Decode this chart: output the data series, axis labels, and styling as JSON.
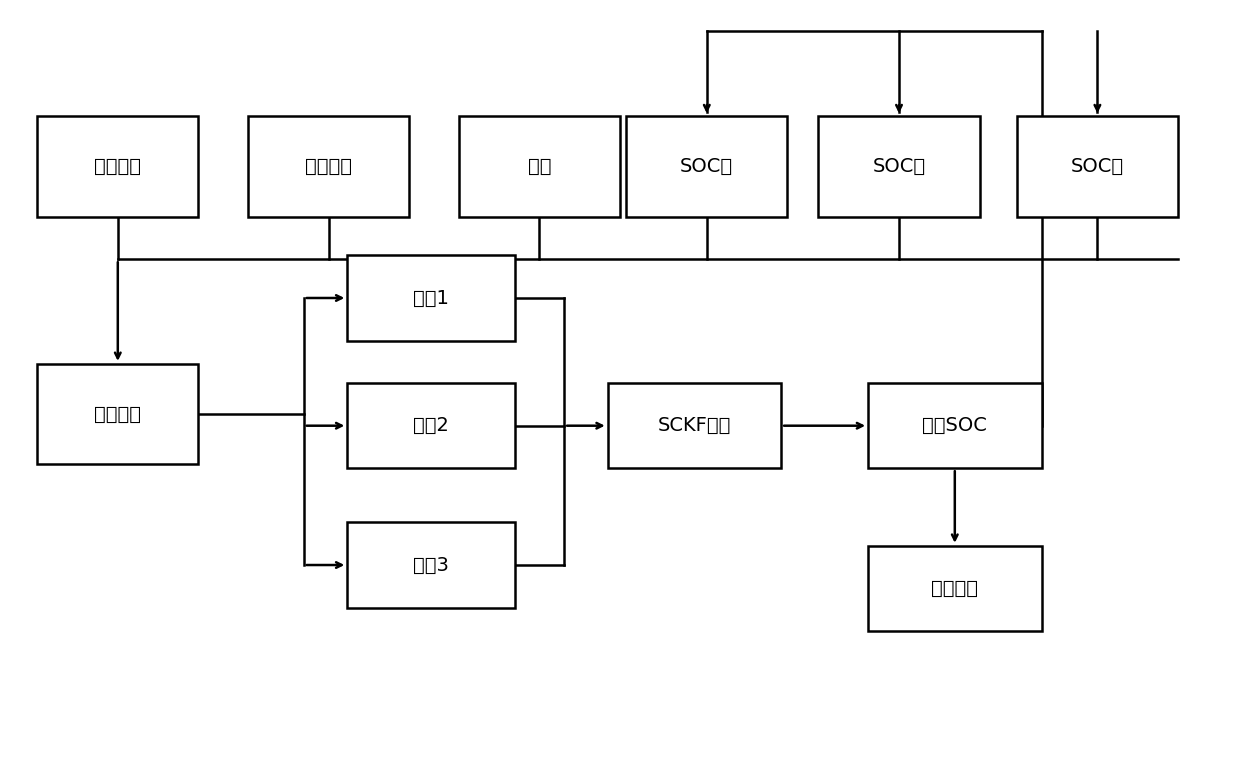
{
  "background_color": "#ffffff",
  "line_color": "#000000",
  "text_color": "#000000",
  "font_size": 14,
  "boxes": {
    "漂移电流": [
      0.03,
      0.72,
      0.13,
      0.13
    ],
    "放电倍率": [
      0.2,
      0.72,
      0.13,
      0.13
    ],
    "温度": [
      0.37,
      0.72,
      0.13,
      0.13
    ],
    "SOC低": [
      0.505,
      0.72,
      0.13,
      0.13
    ],
    "SOC中": [
      0.66,
      0.72,
      0.13,
      0.13
    ],
    "SOC高": [
      0.82,
      0.72,
      0.13,
      0.13
    ],
    "参数整合": [
      0.03,
      0.4,
      0.13,
      0.13
    ],
    "模型1": [
      0.28,
      0.56,
      0.135,
      0.11
    ],
    "模型2": [
      0.28,
      0.395,
      0.135,
      0.11
    ],
    "模型3": [
      0.28,
      0.215,
      0.135,
      0.11
    ],
    "SCKF估计": [
      0.49,
      0.395,
      0.14,
      0.11
    ],
    "实际SOC": [
      0.7,
      0.395,
      0.14,
      0.11
    ],
    "输出结果": [
      0.7,
      0.185,
      0.14,
      0.11
    ]
  },
  "lw": 1.8
}
